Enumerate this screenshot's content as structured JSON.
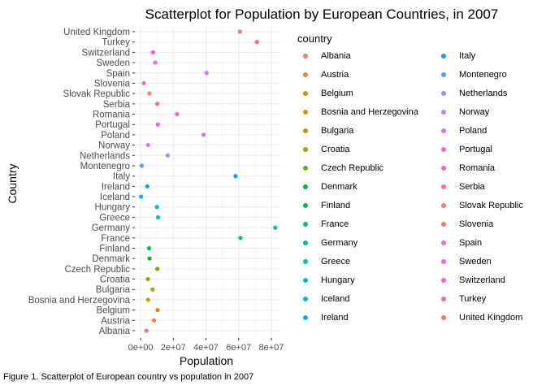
{
  "chart_data": {
    "type": "scatter",
    "title": "Scatterplot for Population by European Countries, in 2007",
    "xlabel": "Population",
    "ylabel": "Country",
    "xlim": [
      -3500000,
      86000000
    ],
    "x_ticks": [
      0,
      20000000,
      40000000,
      60000000,
      80000000
    ],
    "x_tick_labels": [
      "0e+00",
      "2e+07",
      "4e+07",
      "6e+07",
      "8e+07"
    ],
    "grid": true,
    "legend_title": "country",
    "legend_position": "right",
    "categories": [
      "Albania",
      "Austria",
      "Belgium",
      "Bosnia and Herzegovina",
      "Bulgaria",
      "Croatia",
      "Czech Republic",
      "Denmark",
      "Finland",
      "France",
      "Germany",
      "Greece",
      "Hungary",
      "Iceland",
      "Ireland",
      "Italy",
      "Montenegro",
      "Netherlands",
      "Norway",
      "Poland",
      "Portugal",
      "Romania",
      "Serbia",
      "Slovak Republic",
      "Slovenia",
      "Spain",
      "Sweden",
      "Switzerland",
      "Turkey",
      "United Kingdom"
    ],
    "points": [
      {
        "country": "Albania",
        "x": 3600000,
        "color": "#F8766D"
      },
      {
        "country": "Austria",
        "x": 8200000,
        "color": "#EC8239"
      },
      {
        "country": "Belgium",
        "x": 10400000,
        "color": "#DB8E00"
      },
      {
        "country": "Bosnia and Herzegovina",
        "x": 4600000,
        "color": "#C79800"
      },
      {
        "country": "Bulgaria",
        "x": 7300000,
        "color": "#AEA200"
      },
      {
        "country": "Croatia",
        "x": 4500000,
        "color": "#8FAA00"
      },
      {
        "country": "Czech Republic",
        "x": 10200000,
        "color": "#64B200"
      },
      {
        "country": "Denmark",
        "x": 5500000,
        "color": "#00B81B"
      },
      {
        "country": "Finland",
        "x": 5200000,
        "color": "#00BC51"
      },
      {
        "country": "France",
        "x": 61100000,
        "color": "#00BF76"
      },
      {
        "country": "Germany",
        "x": 82400000,
        "color": "#00C098"
      },
      {
        "country": "Greece",
        "x": 10700000,
        "color": "#00C0B7"
      },
      {
        "country": "Hungary",
        "x": 10000000,
        "color": "#00BCD1"
      },
      {
        "country": "Iceland",
        "x": 300000,
        "color": "#00B7E8"
      },
      {
        "country": "Ireland",
        "x": 4100000,
        "color": "#00B0F6"
      },
      {
        "country": "Italy",
        "x": 58100000,
        "color": "#00A5FF"
      },
      {
        "country": "Montenegro",
        "x": 700000,
        "color": "#4B9FFF"
      },
      {
        "country": "Netherlands",
        "x": 16600000,
        "color": "#9590FF"
      },
      {
        "country": "Norway",
        "x": 4600000,
        "color": "#C77CFF"
      },
      {
        "country": "Poland",
        "x": 38500000,
        "color": "#E76BF3"
      },
      {
        "country": "Portugal",
        "x": 10600000,
        "color": "#FA62DB"
      },
      {
        "country": "Romania",
        "x": 22300000,
        "color": "#FF62BC"
      },
      {
        "country": "Serbia",
        "x": 10200000,
        "color": "#FF6C91"
      },
      {
        "country": "Slovak Republic",
        "x": 5400000,
        "color": "#FF7A6B"
      },
      {
        "country": "Slovenia",
        "x": 2000000,
        "color": "#F8766D"
      },
      {
        "country": "Spain",
        "x": 40400000,
        "color": "#E76BF3"
      },
      {
        "country": "Sweden",
        "x": 9000000,
        "color": "#FA62DB"
      },
      {
        "country": "Switzerland",
        "x": 7600000,
        "color": "#FF61C3"
      },
      {
        "country": "Turkey",
        "x": 71200000,
        "color": "#FF64A7"
      },
      {
        "country": "United Kingdom",
        "x": 60800000,
        "color": "#F8766D"
      }
    ]
  },
  "caption": "Figure 1. Scatterplot of European country vs population in 2007"
}
